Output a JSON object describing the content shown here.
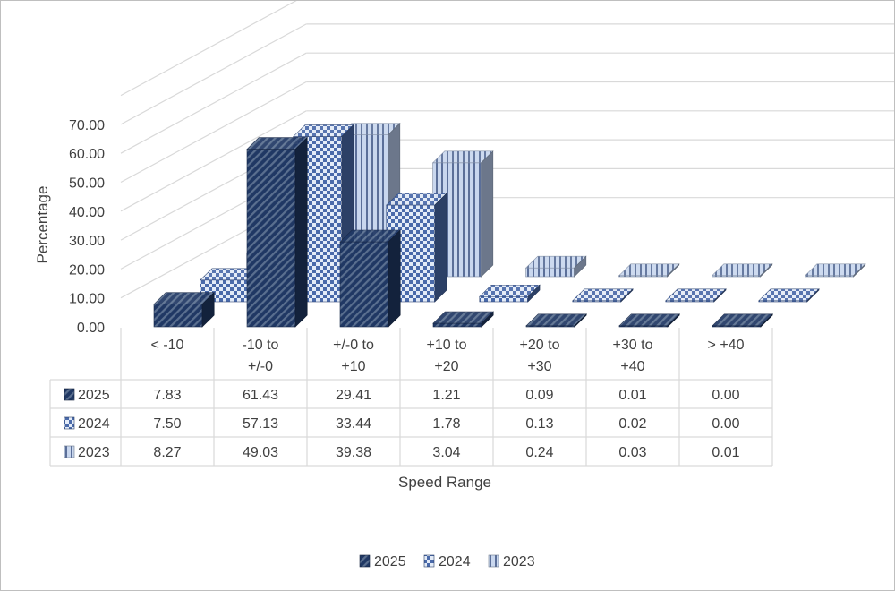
{
  "chart_data": {
    "type": "bar",
    "title": "",
    "xlabel": "Speed Range",
    "ylabel": "Percentage",
    "ylim": [
      0,
      70
    ],
    "yticks": [
      "0.00",
      "10.00",
      "20.00",
      "30.00",
      "40.00",
      "50.00",
      "60.00",
      "70.00"
    ],
    "categories": [
      [
        "< -10"
      ],
      [
        "-10 to",
        "+/-0"
      ],
      [
        "+/-0 to",
        "+10"
      ],
      [
        "+10 to",
        "+20"
      ],
      [
        "+20 to",
        "+30"
      ],
      [
        "+30 to",
        "+40"
      ],
      [
        "> +40"
      ]
    ],
    "series": [
      {
        "name": "2025",
        "values": [
          7.83,
          61.43,
          29.41,
          1.21,
          0.09,
          0.01,
          0.0
        ],
        "labels": [
          "7.83",
          "61.43",
          "29.41",
          "1.21",
          "0.09",
          "0.01",
          "0.00"
        ],
        "color": "#203864"
      },
      {
        "name": "2024",
        "values": [
          7.5,
          57.13,
          33.44,
          1.78,
          0.13,
          0.02,
          0.0
        ],
        "labels": [
          "7.50",
          "57.13",
          "33.44",
          "1.78",
          "0.13",
          "0.02",
          "0.00"
        ],
        "color": "#4a6aaa"
      },
      {
        "name": "2023",
        "values": [
          8.27,
          49.03,
          39.38,
          3.04,
          0.24,
          0.03,
          0.01
        ],
        "labels": [
          "8.27",
          "49.03",
          "39.38",
          "3.04",
          "0.24",
          "0.03",
          "0.01"
        ],
        "color": "#b4c7e7"
      }
    ],
    "grid": true,
    "legend": "bottom",
    "data_table": true,
    "style": "3d-column"
  }
}
